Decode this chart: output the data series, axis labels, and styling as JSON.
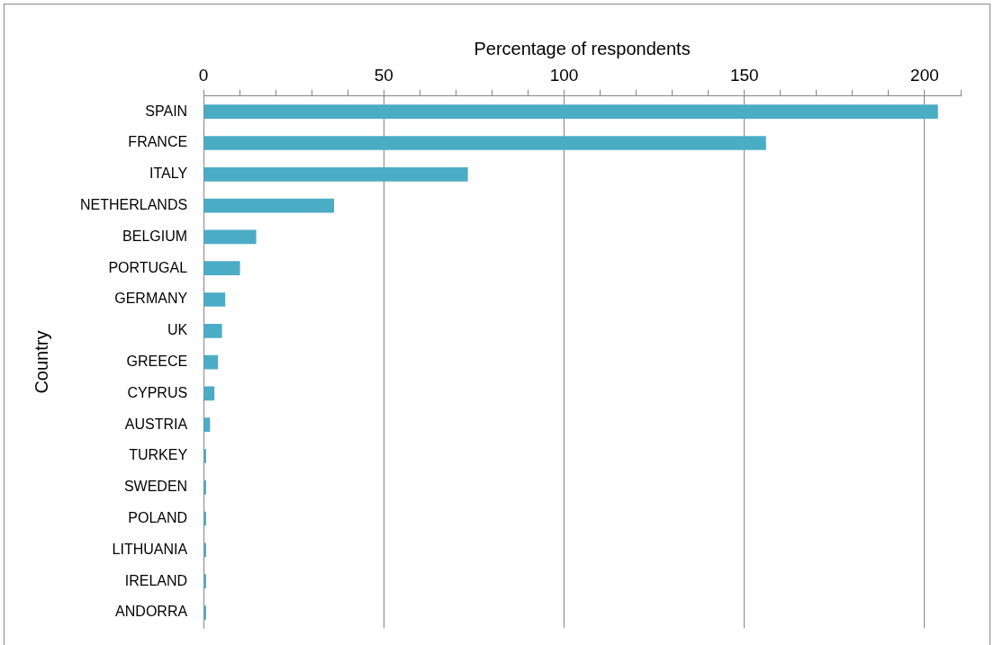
{
  "chart_data": {
    "type": "bar",
    "orientation": "horizontal",
    "xlabel": "Percentage of respondents",
    "ylabel": "Country",
    "categories": [
      "SPAIN",
      "FRANCE",
      "ITALY",
      "NETHERLANDS",
      "BELGIUM",
      "PORTUGAL",
      "GERMANY",
      "UK",
      "GREECE",
      "CYPRUS",
      "AUSTRIA",
      "TURKEY",
      "SWEDEN",
      "POLAND",
      "LITHUANIA",
      "IRELAND",
      "ANDORRA"
    ],
    "values": [
      203.7,
      156,
      73.3,
      36.2,
      14.6,
      10.1,
      6.0,
      5.1,
      4.0,
      3.0,
      1.8,
      0.7,
      0.7,
      0.7,
      0.7,
      0.7,
      0.7
    ],
    "color": "#4bacc6",
    "xlim": [
      0,
      210
    ],
    "xticks": [
      0,
      {
        "value": 10,
        "label": null
      },
      {
        "value": 20,
        "label": null
      },
      {
        "value": 30,
        "label": null
      },
      {
        "value": 40,
        "label": null
      },
      50,
      {
        "value": 60,
        "label": null
      },
      {
        "value": 70,
        "label": null
      },
      {
        "value": 80,
        "label": null
      },
      {
        "value": 90,
        "label": null
      },
      100,
      {
        "value": 110,
        "label": null
      },
      {
        "value": 120,
        "label": null
      },
      {
        "value": 130,
        "label": null
      },
      {
        "value": 140,
        "label": null
      },
      150,
      {
        "value": 160,
        "label": null
      },
      {
        "value": 170,
        "label": null
      },
      {
        "value": 180,
        "label": null
      },
      {
        "value": 190,
        "label": null
      },
      200,
      {
        "value": 210,
        "label": null
      }
    ],
    "grid": "x",
    "legend": false
  }
}
